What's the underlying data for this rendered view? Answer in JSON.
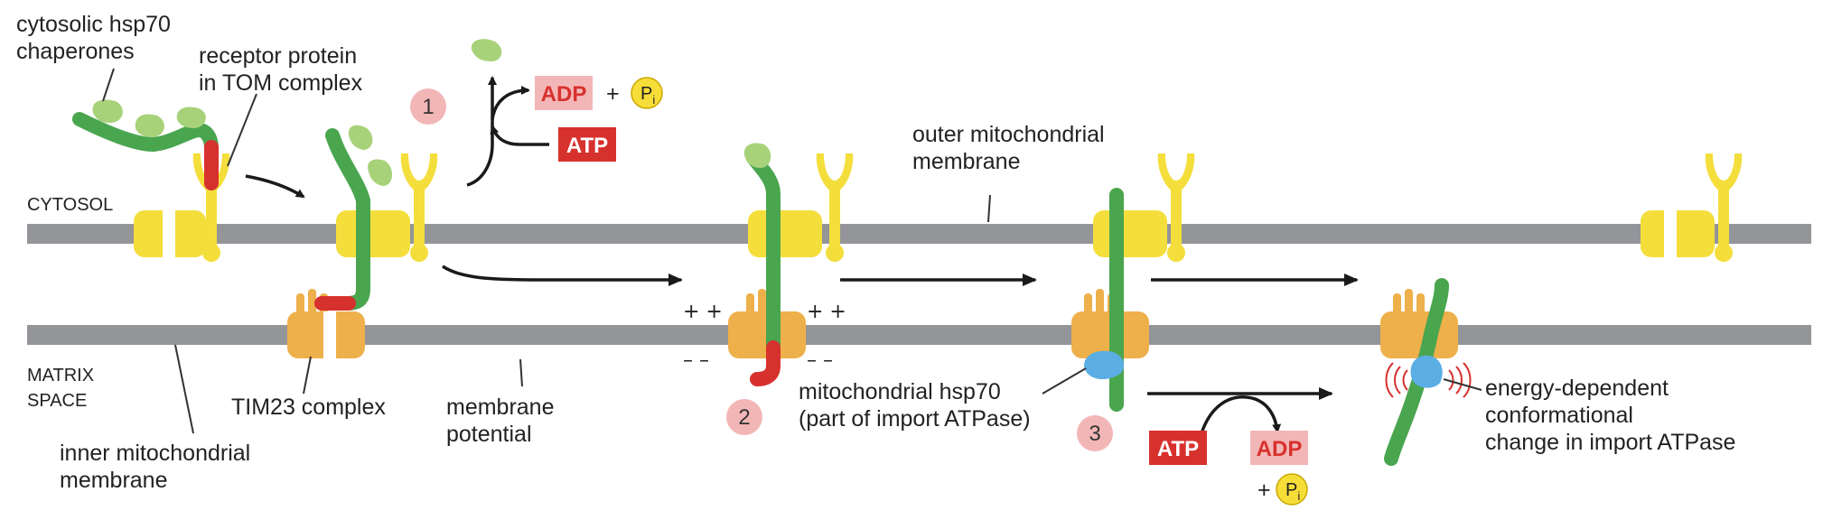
{
  "labels": {
    "chaperones": [
      "cytosolic hsp70",
      "chaperones"
    ],
    "receptor": [
      "receptor protein",
      "in TOM complex"
    ],
    "cytosol": "CYTOSOL",
    "matrix": [
      "MATRIX",
      "SPACE"
    ],
    "outer_membrane": [
      "outer mitochondrial",
      "membrane"
    ],
    "inner_membrane": [
      "inner mitochondrial",
      "membrane"
    ],
    "tim23": "TIM23 complex",
    "membrane_potential": [
      "membrane",
      "potential"
    ],
    "mito_hsp70": [
      "mitochondrial hsp70",
      "(part of import ATPase)"
    ],
    "energy": [
      "energy-dependent",
      "conformational",
      "change in import ATPase"
    ]
  },
  "steps": [
    "1",
    "2",
    "3"
  ],
  "chem": {
    "adp": "ADP",
    "atp": "ATP",
    "plus": "+",
    "pi_main": "P",
    "pi_sub": "i"
  },
  "charges": {
    "positive": "+ +",
    "negative": "– –"
  },
  "colors": {
    "membrane": "#939598",
    "tom": "#f4de3c",
    "tim": "#eeb04a",
    "protein": "#4aa54f",
    "signal": "#d7312e",
    "chaperone": "#a8d27a",
    "mhsp70": "#5aaee3",
    "atp_box": "#d7312e",
    "adp_box": "#f3b6b6",
    "step_circle": "#f3b6b6",
    "pi_circle": "#f7dd38"
  }
}
